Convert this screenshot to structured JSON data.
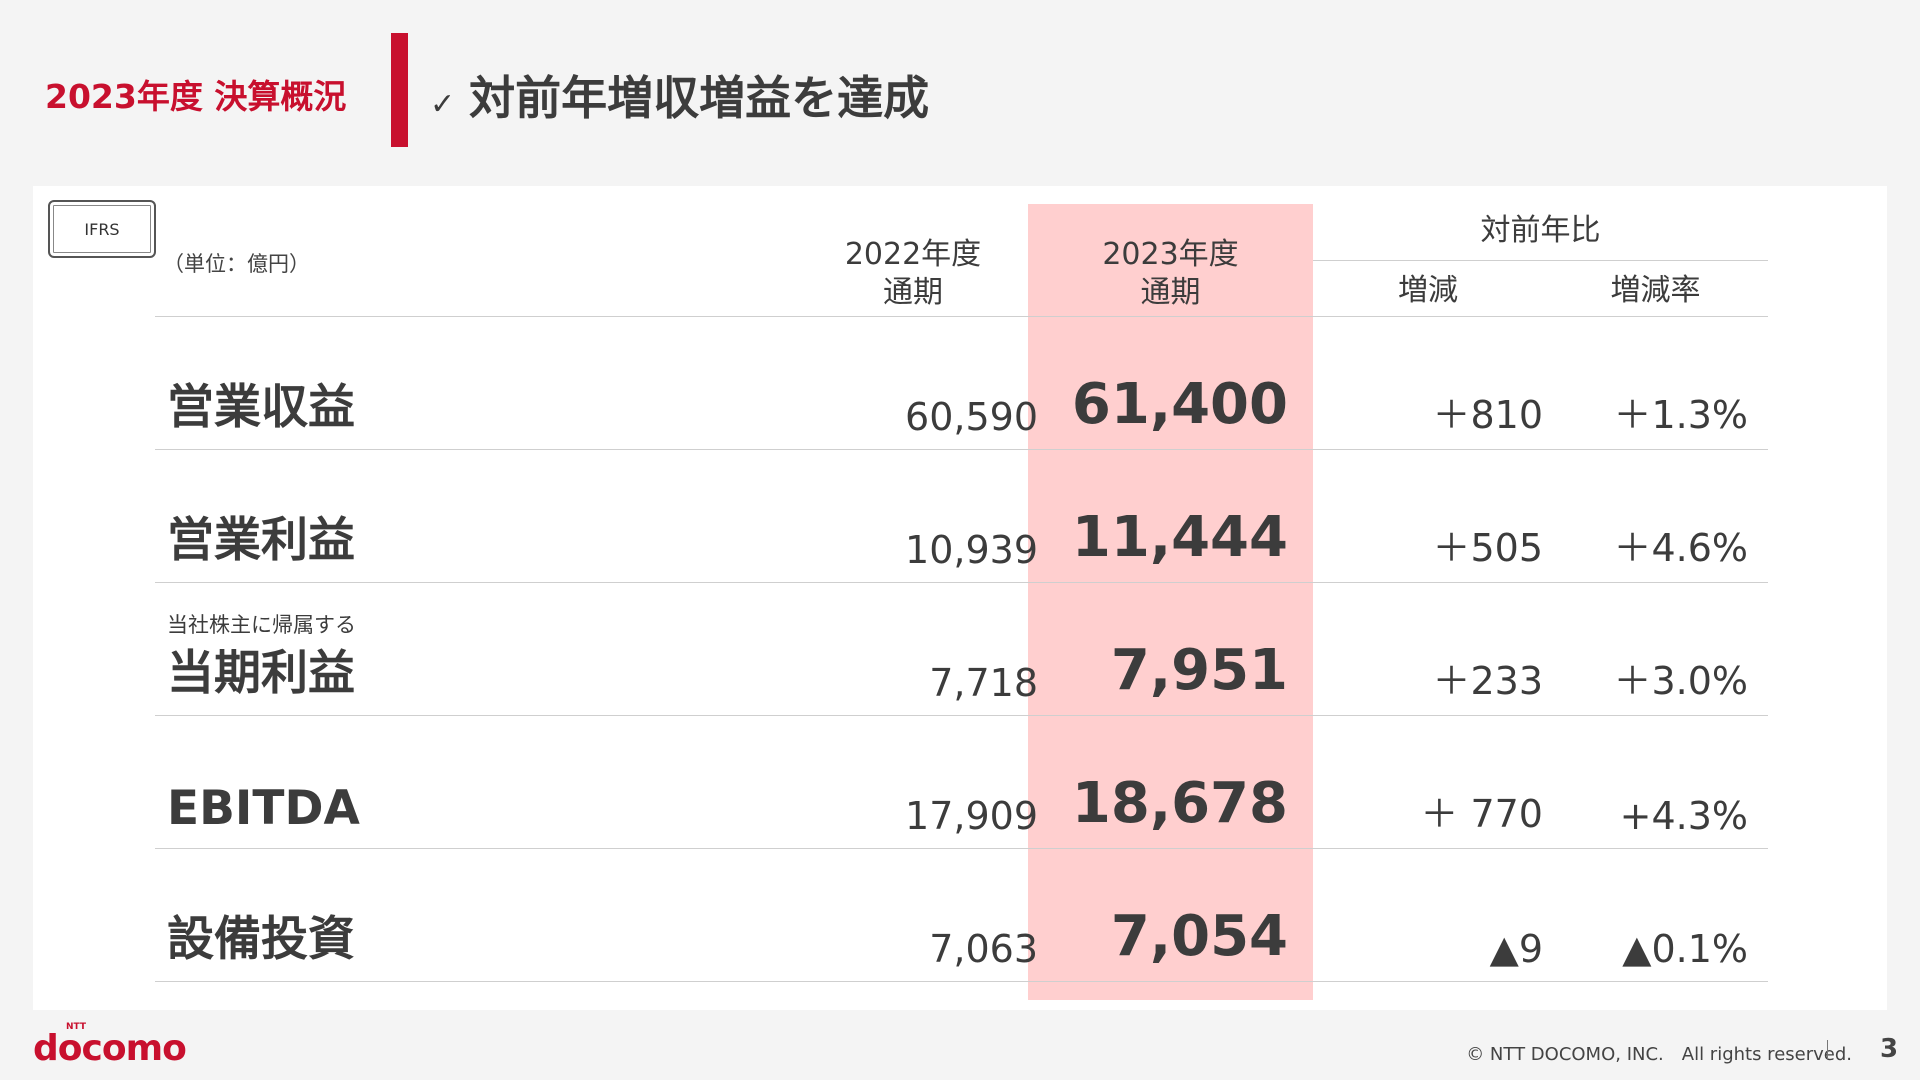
{
  "header": {
    "section": "2023年度 決算概況",
    "check": "✓",
    "title": "対前年増収増益を達成"
  },
  "table": {
    "badge": "IFRS",
    "unit": "（単位：億円）",
    "columns": {
      "fy2022_line1": "2022年度",
      "fy2022_line2": "通期",
      "fy2023_line1": "2023年度",
      "fy2023_line2": "通期",
      "yoy": "対前年比",
      "change": "増減",
      "rate": "増減率"
    },
    "rows": [
      {
        "sublabel": "",
        "label": "営業収益",
        "fy2022": "60,590",
        "fy2023": "61,400",
        "change": "＋810",
        "rate": "＋1.3%"
      },
      {
        "sublabel": "",
        "label": "営業利益",
        "fy2022": "10,939",
        "fy2023": "11,444",
        "change": "＋505",
        "rate": "＋4.6%"
      },
      {
        "sublabel": "当社株主に帰属する",
        "label": "当期利益",
        "fy2022": "7,718",
        "fy2023": "7,951",
        "change": "＋233",
        "rate": "＋3.0%"
      },
      {
        "sublabel": "",
        "label": "EBITDA",
        "fy2022": "17,909",
        "fy2023": "18,678",
        "change": "＋ 770",
        "rate": "+4.3%"
      },
      {
        "sublabel": "",
        "label": "設備投資",
        "fy2022": "7,063",
        "fy2023": "7,054",
        "change": "▲9",
        "rate": "▲0.1%"
      }
    ]
  },
  "footer": {
    "logo": "docomo",
    "logo_small": "NTT",
    "copyright": "© NTT DOCOMO, INC.　All rights reserved.",
    "page": "3"
  }
}
